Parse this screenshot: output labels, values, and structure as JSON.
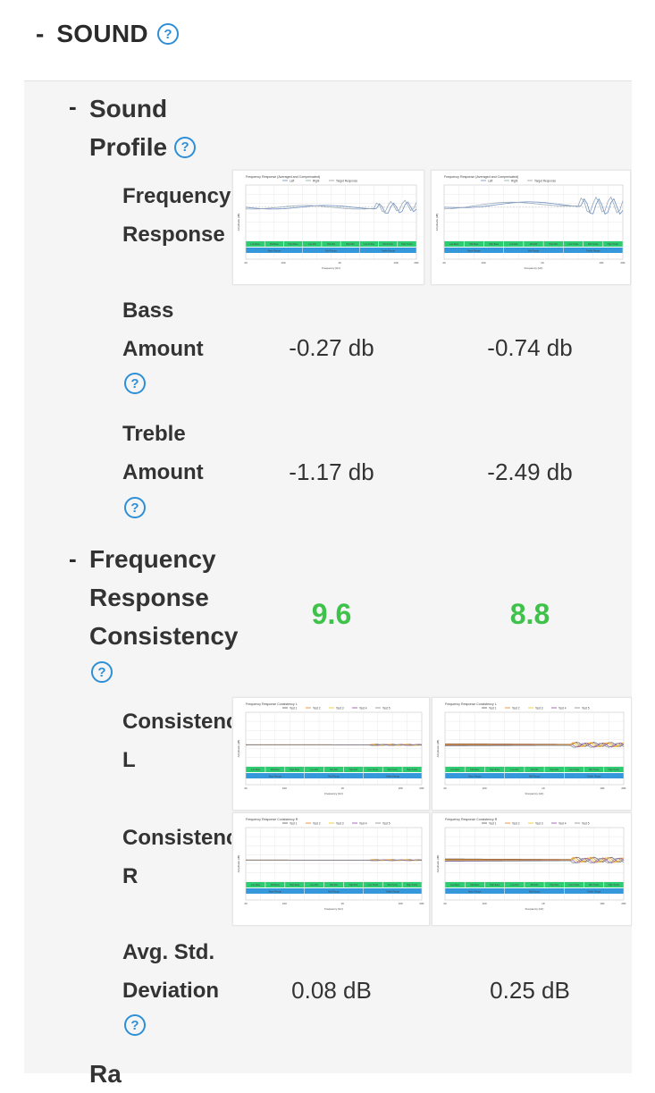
{
  "section": {
    "title": "SOUND",
    "collapse": "-",
    "help": "?"
  },
  "sound_profile": {
    "title_line1": "Sound",
    "title_line2": "Profile",
    "collapse": "-",
    "freq_response": {
      "label_line1": "Frequency",
      "label_line2": "Response",
      "chart_title": "Frequency Response (Averaged and Compensated)",
      "legend": [
        "Left",
        "Right",
        "Target Response"
      ]
    },
    "bass": {
      "label_line1": "Bass",
      "label_line2": "Amount",
      "left": "-0.27 db",
      "right": "-0.74 db"
    },
    "treble": {
      "label_line1": "Treble",
      "label_line2": "Amount",
      "left": "-1.17 db",
      "right": "-2.49 db"
    }
  },
  "consistency": {
    "title_line1": "Frequency",
    "title_line2": "Response",
    "title_line3": "Consistency",
    "collapse": "-",
    "score_left": "9.6",
    "score_right": "8.8",
    "cons_l": {
      "label_line1": "Consistenc",
      "label_line2": "L",
      "chart_title": "Frequency Response Consistency L"
    },
    "cons_r": {
      "label_line1": "Consistenc",
      "label_line2": "R",
      "chart_title": "Frequency Response Consistency R"
    },
    "tests_legend": [
      "Test 1",
      "Test 2",
      "Test 3",
      "Test 4",
      "Test 5"
    ],
    "std_dev": {
      "label_line1": "Avg. Std.",
      "label_line2": "Deviation",
      "left": "0.08 dB",
      "right": "0.25 dB"
    }
  },
  "next_partial": "Ra",
  "graph_common": {
    "xticks": [
      "20",
      "100",
      "1K",
      "10K",
      "20K"
    ],
    "xlabel": "Frequency (Hz)",
    "ylabel": "Amplitude (dB)",
    "bands": [
      "Low-Bass",
      "Mid-Bass",
      "High-Bass",
      "Low-Mid",
      "Mid-Mid",
      "High-Mid",
      "Low-Treble",
      "Mid-Treble",
      "High-Treble"
    ],
    "ranges": [
      "Bass Range",
      "Mid Range",
      "Treble Range"
    ]
  },
  "colors": {
    "accent": "#2e8fd6",
    "score": "#3ec24a",
    "band": "#2ecc71",
    "range": "#3498db"
  }
}
